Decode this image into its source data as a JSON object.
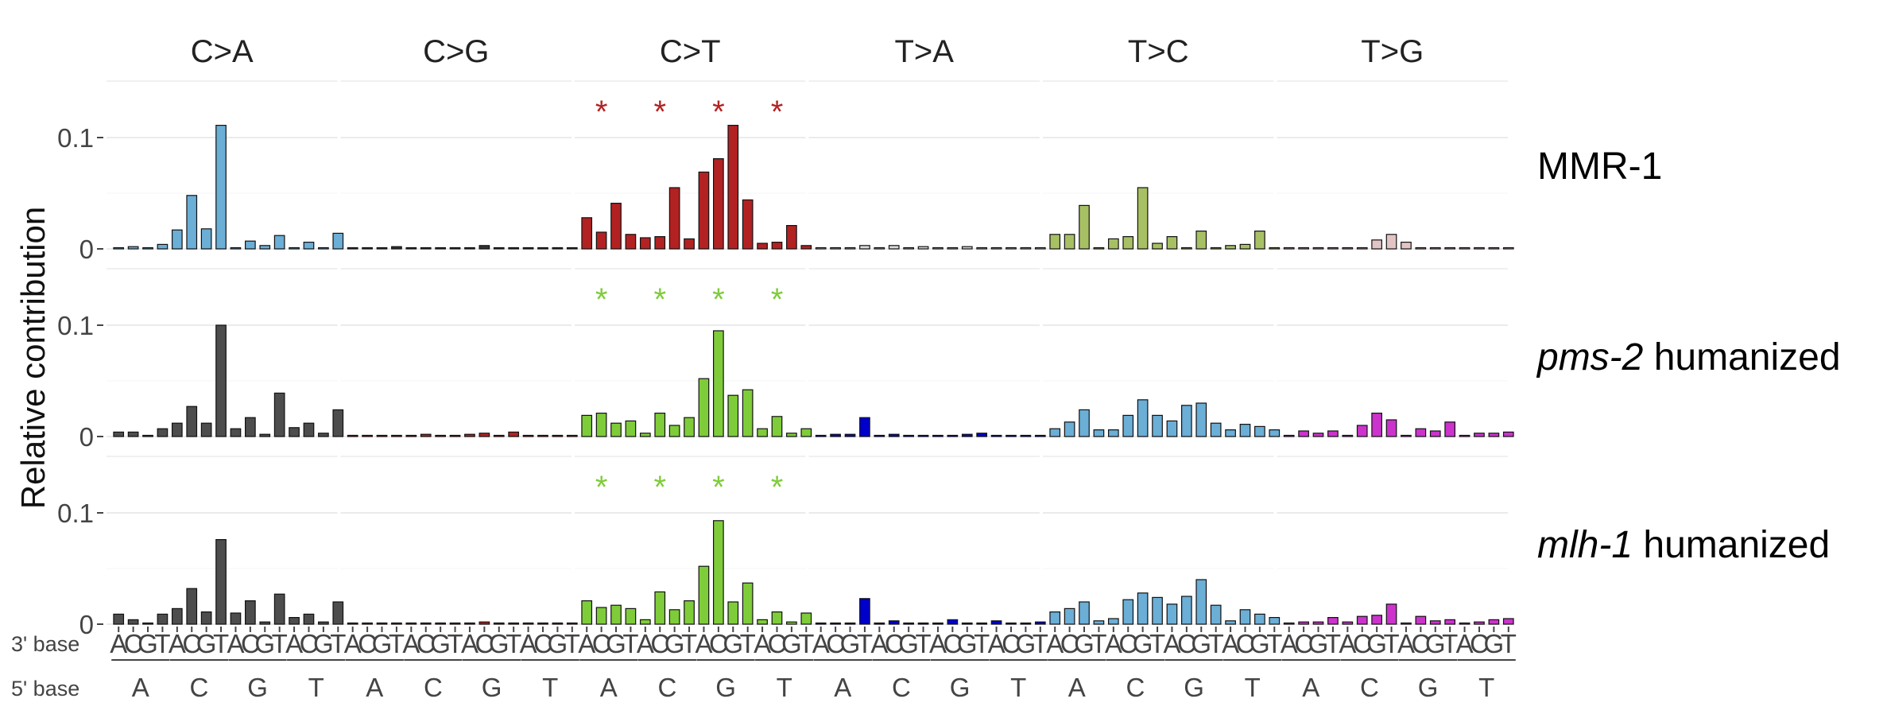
{
  "chart_data": {
    "type": "bar",
    "ylabel": "Relative contribution",
    "ylim": [
      0,
      0.13
    ],
    "yticks": [
      {
        "value": 0,
        "label": "0"
      },
      {
        "value": 0.1,
        "label": "0.1"
      }
    ],
    "mutation_types": [
      "C>A",
      "C>G",
      "C>T",
      "T>A",
      "T>C",
      "T>G"
    ],
    "three_prime_label": "3' base",
    "five_prime_label": "5' base",
    "three_prime_bases": [
      "A",
      "C",
      "G",
      "T"
    ],
    "five_prime_bases": [
      "A",
      "C",
      "G",
      "T"
    ],
    "significance_marker": "*",
    "rows": [
      {
        "name": "MMR-1",
        "name_italic": "",
        "name_rest": "MMR-1",
        "star_color": "#B22222",
        "star_panel": "C>T",
        "star_positions": [
          1,
          5,
          9,
          13
        ],
        "colors": {
          "C>A": "#6BAED6",
          "C>G": "#333333",
          "C>T": "#B22222",
          "T>A": "#D9D9D9",
          "T>C": "#A7C064",
          "T>G": "#E3C4C4"
        },
        "values": {
          "C>A": [
            0.0,
            0.002,
            0.001,
            0.004,
            0.017,
            0.048,
            0.018,
            0.111,
            0.001,
            0.007,
            0.003,
            0.012,
            0.001,
            0.006,
            0.001,
            0.014
          ],
          "C>G": [
            0.001,
            0.001,
            0.0,
            0.002,
            0.0,
            0.0,
            0.0,
            0.0,
            0.001,
            0.003,
            0.0,
            0.001,
            0.0,
            0.0,
            0.0,
            0.0
          ],
          "C>T": [
            0.028,
            0.015,
            0.041,
            0.013,
            0.01,
            0.011,
            0.055,
            0.009,
            0.069,
            0.081,
            0.111,
            0.044,
            0.005,
            0.006,
            0.021,
            0.003
          ],
          "T>A": [
            0.0,
            0.0,
            0.0,
            0.003,
            0.0,
            0.003,
            0.0,
            0.002,
            0.0,
            0.0,
            0.002,
            0.0,
            0.001,
            0.0,
            0.0,
            0.0
          ],
          "T>C": [
            0.013,
            0.013,
            0.039,
            0.001,
            0.009,
            0.011,
            0.055,
            0.005,
            0.011,
            0.001,
            0.016,
            0.001,
            0.003,
            0.004,
            0.016,
            0.001
          ],
          "T>G": [
            0.0,
            0.001,
            0.0,
            0.001,
            0.0,
            0.0,
            0.008,
            0.013,
            0.006,
            0.0,
            0.001,
            0.0,
            0.0,
            0.0,
            0.0,
            0.0
          ]
        }
      },
      {
        "name": "pms-2 humanized",
        "name_italic": "pms-2",
        "name_rest": " humanized",
        "star_color": "#7FCC3A",
        "star_panel": "C>T",
        "star_positions": [
          1,
          5,
          9,
          13
        ],
        "colors": {
          "C>A": "#4D4D4D",
          "C>G": "#B22222",
          "C>T": "#7FCC3A",
          "T>A": "#0000CC",
          "T>C": "#6BAED6",
          "T>G": "#CC33CC"
        },
        "values": {
          "C>A": [
            0.004,
            0.004,
            0.001,
            0.007,
            0.012,
            0.027,
            0.012,
            0.1,
            0.007,
            0.017,
            0.002,
            0.039,
            0.008,
            0.012,
            0.003,
            0.024
          ],
          "C>G": [
            0.0,
            0.001,
            0.0,
            0.0,
            0.0,
            0.002,
            0.0,
            0.0,
            0.002,
            0.003,
            0.0,
            0.004,
            0.0,
            0.0,
            0.0,
            0.0
          ],
          "C>T": [
            0.019,
            0.021,
            0.012,
            0.014,
            0.003,
            0.021,
            0.01,
            0.017,
            0.052,
            0.095,
            0.037,
            0.042,
            0.007,
            0.018,
            0.003,
            0.007
          ],
          "T>A": [
            0.0,
            0.002,
            0.002,
            0.017,
            0.0,
            0.002,
            0.0,
            0.0,
            0.0,
            0.001,
            0.002,
            0.003,
            0.001,
            0.0,
            0.001,
            0.0
          ],
          "T>C": [
            0.007,
            0.013,
            0.024,
            0.006,
            0.006,
            0.019,
            0.033,
            0.019,
            0.014,
            0.028,
            0.03,
            0.012,
            0.006,
            0.011,
            0.009,
            0.006
          ],
          "T>G": [
            0.0,
            0.005,
            0.003,
            0.005,
            0.0,
            0.01,
            0.021,
            0.015,
            0.0,
            0.007,
            0.005,
            0.013,
            0.0,
            0.003,
            0.003,
            0.004
          ]
        }
      },
      {
        "name": "mlh-1 humanized",
        "name_italic": "mlh-1",
        "name_rest": " humanized",
        "star_color": "#7FCC3A",
        "star_panel": "C>T",
        "star_positions": [
          1,
          5,
          9,
          13
        ],
        "colors": {
          "C>A": "#4D4D4D",
          "C>G": "#B22222",
          "C>T": "#7FCC3A",
          "T>A": "#0000CC",
          "T>C": "#6BAED6",
          "T>G": "#CC33CC"
        },
        "values": {
          "C>A": [
            0.009,
            0.004,
            0.001,
            0.009,
            0.014,
            0.032,
            0.011,
            0.076,
            0.01,
            0.021,
            0.002,
            0.027,
            0.006,
            0.009,
            0.002,
            0.02
          ],
          "C>G": [
            0.001,
            0.0,
            0.0,
            0.0,
            0.0,
            0.0,
            0.0,
            0.0,
            0.0,
            0.002,
            0.0,
            0.0,
            0.0,
            0.001,
            0.0,
            0.0
          ],
          "C>T": [
            0.021,
            0.015,
            0.017,
            0.014,
            0.004,
            0.029,
            0.013,
            0.021,
            0.052,
            0.093,
            0.02,
            0.037,
            0.004,
            0.011,
            0.002,
            0.01
          ],
          "T>A": [
            0.0,
            0.0,
            0.001,
            0.023,
            0.0,
            0.003,
            0.0,
            0.0,
            0.0,
            0.004,
            0.0,
            0.001,
            0.003,
            0.001,
            0.0,
            0.002
          ],
          "T>C": [
            0.011,
            0.014,
            0.02,
            0.003,
            0.005,
            0.022,
            0.028,
            0.024,
            0.018,
            0.025,
            0.04,
            0.017,
            0.003,
            0.013,
            0.009,
            0.006
          ],
          "T>G": [
            0.0,
            0.002,
            0.002,
            0.006,
            0.002,
            0.007,
            0.008,
            0.018,
            0.0,
            0.007,
            0.003,
            0.004,
            0.0,
            0.002,
            0.004,
            0.005
          ]
        }
      }
    ]
  }
}
